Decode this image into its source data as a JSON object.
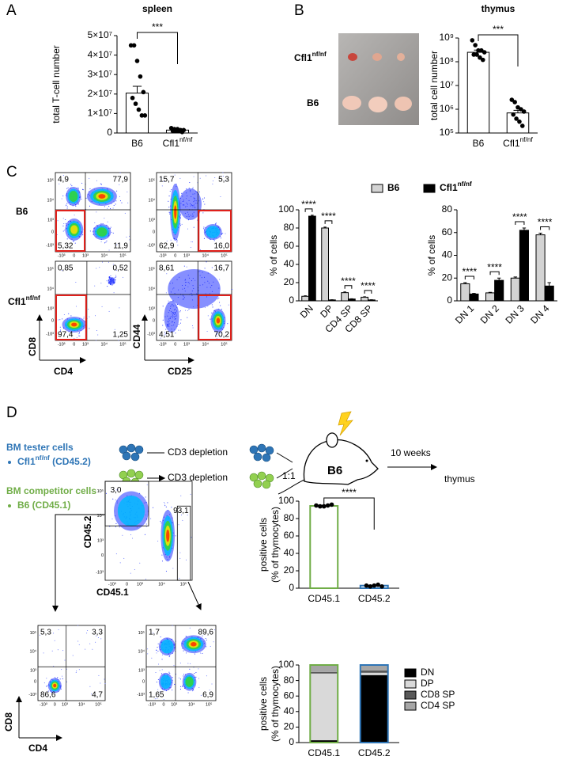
{
  "chart_data": [
    {
      "type": "bar",
      "title": "spleen",
      "ylabel": "total T-cell number",
      "categories": [
        "B6",
        "Cfl1nf/nf"
      ],
      "series": [
        {
          "color": "#ffffff",
          "edgecolor": "#000000",
          "values": [
            20500000,
            1500000
          ],
          "errors": [
            3500000,
            300000
          ],
          "points": [
            [
              45000000,
              45000000,
              37000000,
              29000000,
              21000000,
              18000000,
              15000000,
              12000000,
              9000000,
              9000000
            ],
            [
              2500000,
              2000000,
              2000000,
              1500000,
              1500000,
              1000000,
              1000000,
              1000000,
              500000
            ]
          ]
        }
      ],
      "ylim": [
        0,
        50000000
      ],
      "yticks": [
        0,
        {
          "value": 10000000,
          "label": "1×10⁷"
        },
        {
          "value": 20000000,
          "label": "2×10⁷"
        },
        {
          "value": 30000000,
          "label": "3×10⁷"
        },
        {
          "value": 40000000,
          "label": "4×10⁷"
        },
        {
          "value": 50000000,
          "label": "5×10⁷"
        }
      ],
      "significance": "***"
    },
    {
      "type": "bar",
      "title": "thymus",
      "ylabel": "total cell number",
      "log": true,
      "categories": [
        "B6",
        "Cfl1nf/nf"
      ],
      "series": [
        {
          "color": "#ffffff",
          "edgecolor": "#000000",
          "values": [
            250000000,
            700000
          ],
          "errors": [
            60000000,
            200000
          ],
          "points": [
            [
              800000000,
              500000000,
              300000000,
              300000000,
              250000000,
              200000000,
              200000000,
              150000000,
              120000000
            ],
            [
              2500000,
              2000000,
              1200000,
              1000000,
              800000,
              600000,
              400000,
              300000,
              200000
            ]
          ]
        }
      ],
      "ylim": [
        100000,
        1000000000
      ],
      "yticks": [
        {
          "value": 100000,
          "label": "10⁵"
        },
        {
          "value": 1000000,
          "label": "10⁶"
        },
        {
          "value": 10000000,
          "label": "10⁷"
        },
        {
          "value": 100000000,
          "label": "10⁸"
        },
        {
          "value": 1000000000,
          "label": "10⁹"
        }
      ],
      "significance": "***"
    },
    {
      "type": "bar",
      "ylabel": "% of cells",
      "categories": [
        "DN",
        "DP",
        "CD4 SP",
        "CD8 SP"
      ],
      "series": [
        {
          "name": "B6",
          "color": "#d3d3d3",
          "values": [
            5,
            80,
            9,
            4
          ],
          "errors": [
            0.5,
            1,
            0.8,
            0.5
          ]
        },
        {
          "name": "Cfl1nf/nf",
          "color": "#000000",
          "values": [
            93,
            1,
            2,
            1
          ],
          "errors": [
            1,
            0.2,
            0.3,
            0.2
          ]
        }
      ],
      "ylim": [
        0,
        100
      ],
      "yticks": [
        0,
        20,
        40,
        60,
        80,
        100
      ],
      "significance": [
        "****",
        "****",
        "****",
        "****"
      ],
      "legend": "top"
    },
    {
      "type": "bar",
      "ylabel": "% of cells",
      "categories": [
        "DN 1",
        "DN 2",
        "DN 3",
        "DN 4"
      ],
      "series": [
        {
          "color": "#d3d3d3",
          "values": [
            15,
            7,
            20,
            58
          ],
          "errors": [
            1,
            0.5,
            1,
            1.5
          ]
        },
        {
          "color": "#000000",
          "values": [
            6,
            18,
            62,
            13
          ],
          "errors": [
            0.5,
            2,
            2,
            3
          ]
        }
      ],
      "ylim": [
        0,
        80
      ],
      "yticks": [
        0,
        20,
        40,
        60,
        80
      ],
      "significance": [
        "****",
        "****",
        "****",
        "****"
      ]
    },
    {
      "type": "bar",
      "ylabel": [
        "positive cells",
        "(% of thymocytes)"
      ],
      "categories": [
        "CD45.1",
        "CD45.2"
      ],
      "edgecolors": [
        "#70ad47",
        "#2e75b6"
      ],
      "series": [
        {
          "color": "#ffffff",
          "values": [
            94.5,
            3
          ],
          "errors": [
            0.8,
            0.5
          ],
          "points": [
            [
              95,
              94,
              94,
              95,
              96
            ],
            [
              3,
              2,
              3,
              4,
              2
            ]
          ]
        }
      ],
      "ylim": [
        0,
        100
      ],
      "yticks": [
        0,
        20,
        40,
        60,
        80,
        100
      ],
      "significance": "****"
    },
    {
      "type": "bar",
      "stacked": true,
      "ylabel": [
        "positive cells",
        "(% of thymocytes)"
      ],
      "categories": [
        "CD45.1",
        "CD45.2"
      ],
      "edgecolors": [
        "#70ad47",
        "#2e75b6"
      ],
      "series": [
        {
          "name": "DN",
          "color": "#000000",
          "values": [
            3,
            87
          ]
        },
        {
          "name": "DP",
          "color": "#d9d9d9",
          "values": [
            86,
            3
          ]
        },
        {
          "name": "CD8 SP",
          "color": "#595959",
          "values": [
            2,
            3
          ]
        },
        {
          "name": "CD4 SP",
          "color": "#a6a6a6",
          "values": [
            9,
            7
          ]
        }
      ],
      "ylim": [
        0,
        100
      ],
      "yticks": [
        0,
        20,
        40,
        60,
        80,
        100
      ],
      "legend": "right"
    }
  ],
  "figure": {
    "panel_labels": {
      "a": "A",
      "b": "B",
      "c": "C",
      "d": "D"
    },
    "flow_ticks": {
      "x": [
        "-10³",
        "0",
        "10³",
        "10⁴",
        "10⁵"
      ],
      "y": [
        "-10³",
        "0",
        "10³",
        "10⁴",
        "10⁵"
      ]
    },
    "photo_labels": [
      "Cfl1nf/nf",
      "B6"
    ],
    "c_rows": [
      "B6",
      "Cfl1nf/nf"
    ],
    "c_axes": {
      "cd8": "CD8",
      "cd4": "CD4",
      "cd44": "CD44",
      "cd25": "CD25"
    },
    "c_plots": [
      {
        "tl": "4,9",
        "tr": "77,9",
        "bl": "5,32",
        "br": "11,9"
      },
      {
        "tl": "15,7",
        "tr": "5,3",
        "bl": "62,9",
        "br": "16,0"
      },
      {
        "tl": "0,85",
        "tr": "0,52",
        "bl": "97,4",
        "br": "1,25"
      },
      {
        "tl": "8,61",
        "tr": "16,7",
        "bl": "4,51",
        "br": "70,2"
      }
    ],
    "d_diagram": {
      "tester": "BM tester cells",
      "tester_item": "Cfl1nf/nf (CD45.2)",
      "competitor": "BM competitor cells",
      "competitor_item": "B6 (CD45.1)",
      "depletion": [
        "CD3 depletion",
        "CD3 depletion"
      ],
      "ratio": "1:1",
      "mouse": "B6",
      "time": "10 weeks",
      "target": "thymus"
    },
    "d_top_plot": {
      "gate": "3,0",
      "main": "93,1",
      "y_axis": "CD45.2",
      "x_axis": "CD45.1"
    },
    "d_bottom_plots": [
      {
        "tl": "5,3",
        "tr": "3,3",
        "bl": "86,6",
        "br": "4,7"
      },
      {
        "tl": "1,7",
        "tr": "89,6",
        "bl": "1,65",
        "br": "6,9"
      }
    ],
    "d_bottom_axes": {
      "y": "CD8",
      "x": "CD4"
    }
  }
}
